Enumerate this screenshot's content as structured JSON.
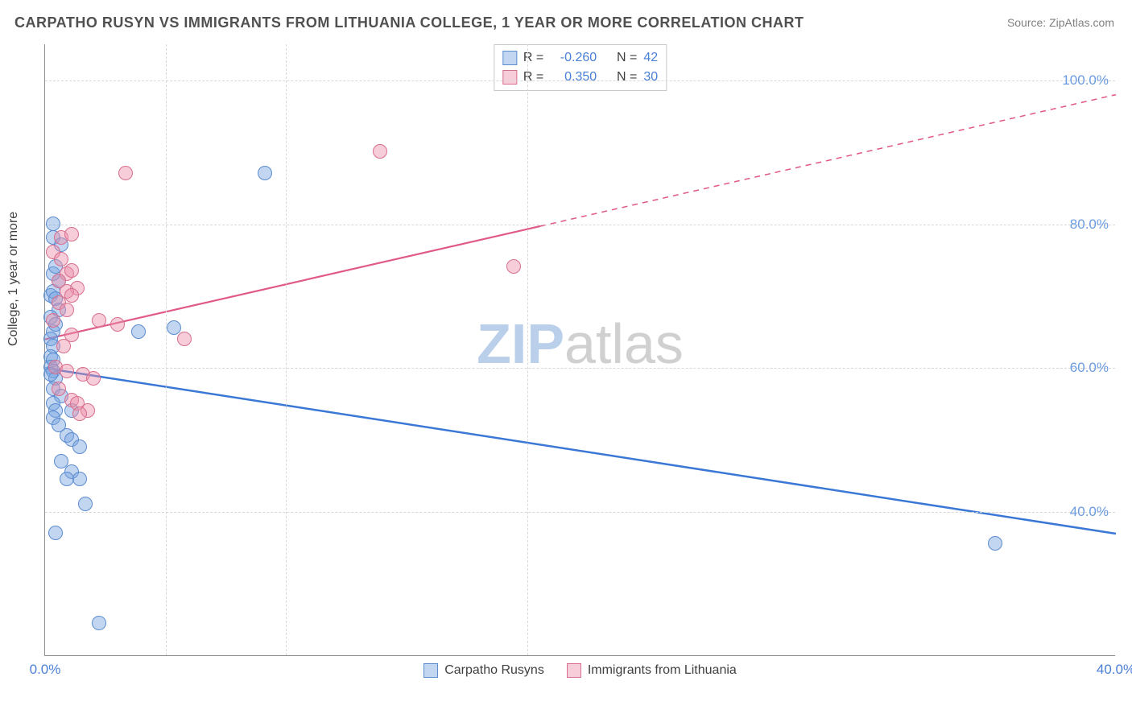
{
  "title": "CARPATHO RUSYN VS IMMIGRANTS FROM LITHUANIA COLLEGE, 1 YEAR OR MORE CORRELATION CHART",
  "source": "Source: ZipAtlas.com",
  "ylabel": "College, 1 year or more",
  "chart": {
    "type": "scatter",
    "background_color": "#ffffff",
    "grid_color": "#d8d8d8",
    "axis_color": "#909090",
    "xlim": [
      0,
      40
    ],
    "ylim": [
      20,
      105
    ],
    "x_ticks": [
      0,
      40
    ],
    "x_tick_labels": [
      "0.0%",
      "40.0%"
    ],
    "x_tick_color": "#4a7fd6",
    "x_minor_grid": [
      4.5,
      9,
      18
    ],
    "y_ticks": [
      40,
      60,
      80,
      100
    ],
    "y_tick_labels": [
      "40.0%",
      "60.0%",
      "80.0%",
      "100.0%"
    ],
    "y_tick_color": "#6b9be0",
    "tick_fontsize": 17,
    "label_fontsize": 16,
    "title_fontsize": 18,
    "title_color": "#505050",
    "marker_radius": 9,
    "watermark": {
      "text_bold": "ZIP",
      "text_light": "atlas",
      "color_bold": "#b9cfea",
      "color_light": "#d0d0d0",
      "fontsize": 70
    }
  },
  "series": [
    {
      "name": "Carpatho Rusyns",
      "fill": "rgba(120,165,225,0.45)",
      "stroke": "#5b8cd0",
      "line_color": "#3b78d6",
      "line_width": 2.5,
      "R": "-0.260",
      "N": "42",
      "trend": {
        "x1": 0,
        "y1": 60,
        "x2": 40,
        "y2": 37,
        "extrapolate_from_x": 40
      },
      "points": [
        [
          0.3,
          80
        ],
        [
          0.3,
          78
        ],
        [
          0.6,
          77
        ],
        [
          0.2,
          70
        ],
        [
          0.3,
          70.5
        ],
        [
          0.4,
          69.5
        ],
        [
          0.5,
          68
        ],
        [
          0.2,
          67
        ],
        [
          0.3,
          65
        ],
        [
          0.4,
          66
        ],
        [
          0.2,
          64
        ],
        [
          0.3,
          63
        ],
        [
          0.2,
          61.5
        ],
        [
          0.3,
          61
        ],
        [
          0.2,
          60
        ],
        [
          0.3,
          59.5
        ],
        [
          0.4,
          58.5
        ],
        [
          0.2,
          59
        ],
        [
          0.3,
          57
        ],
        [
          0.6,
          56
        ],
        [
          0.3,
          55
        ],
        [
          1.0,
          54
        ],
        [
          0.4,
          54
        ],
        [
          0.3,
          53
        ],
        [
          0.5,
          52
        ],
        [
          0.8,
          50.5
        ],
        [
          1.0,
          50
        ],
        [
          1.3,
          49
        ],
        [
          0.6,
          47
        ],
        [
          1.0,
          45.5
        ],
        [
          0.8,
          44.5
        ],
        [
          1.3,
          44.5
        ],
        [
          1.5,
          41
        ],
        [
          0.4,
          37
        ],
        [
          2.0,
          24.5
        ],
        [
          3.5,
          65
        ],
        [
          4.8,
          65.5
        ],
        [
          8.2,
          87
        ],
        [
          35.5,
          35.5
        ],
        [
          0.5,
          72
        ],
        [
          0.3,
          73
        ],
        [
          0.4,
          74
        ]
      ]
    },
    {
      "name": "Immigrants from Lithuania",
      "fill": "rgba(235,145,170,0.45)",
      "stroke": "#d86f8e",
      "line_color": "#e15a87",
      "line_width": 2.2,
      "R": "0.350",
      "N": "30",
      "trend": {
        "x1": 0,
        "y1": 64,
        "x2": 40,
        "y2": 98,
        "extrapolate_from_x": 18.5
      },
      "points": [
        [
          0.6,
          78
        ],
        [
          1.0,
          78.5
        ],
        [
          0.3,
          76
        ],
        [
          0.6,
          75
        ],
        [
          0.8,
          73
        ],
        [
          1.0,
          73.5
        ],
        [
          0.5,
          72
        ],
        [
          1.2,
          71
        ],
        [
          0.8,
          70.5
        ],
        [
          1.0,
          70
        ],
        [
          0.5,
          69
        ],
        [
          0.8,
          68
        ],
        [
          0.3,
          66.5
        ],
        [
          2.0,
          66.5
        ],
        [
          2.7,
          66
        ],
        [
          1.0,
          64.5
        ],
        [
          0.7,
          63
        ],
        [
          0.4,
          60
        ],
        [
          0.8,
          59.5
        ],
        [
          1.4,
          59
        ],
        [
          1.8,
          58.5
        ],
        [
          0.5,
          57
        ],
        [
          1.0,
          55.5
        ],
        [
          1.2,
          55
        ],
        [
          1.6,
          54
        ],
        [
          1.3,
          53.5
        ],
        [
          3.0,
          87
        ],
        [
          5.2,
          64
        ],
        [
          12.5,
          90
        ],
        [
          17.5,
          74
        ]
      ]
    }
  ],
  "stat_labels": {
    "R": "R =",
    "N": "N ="
  },
  "stat_value_color": "#4a7fd6"
}
